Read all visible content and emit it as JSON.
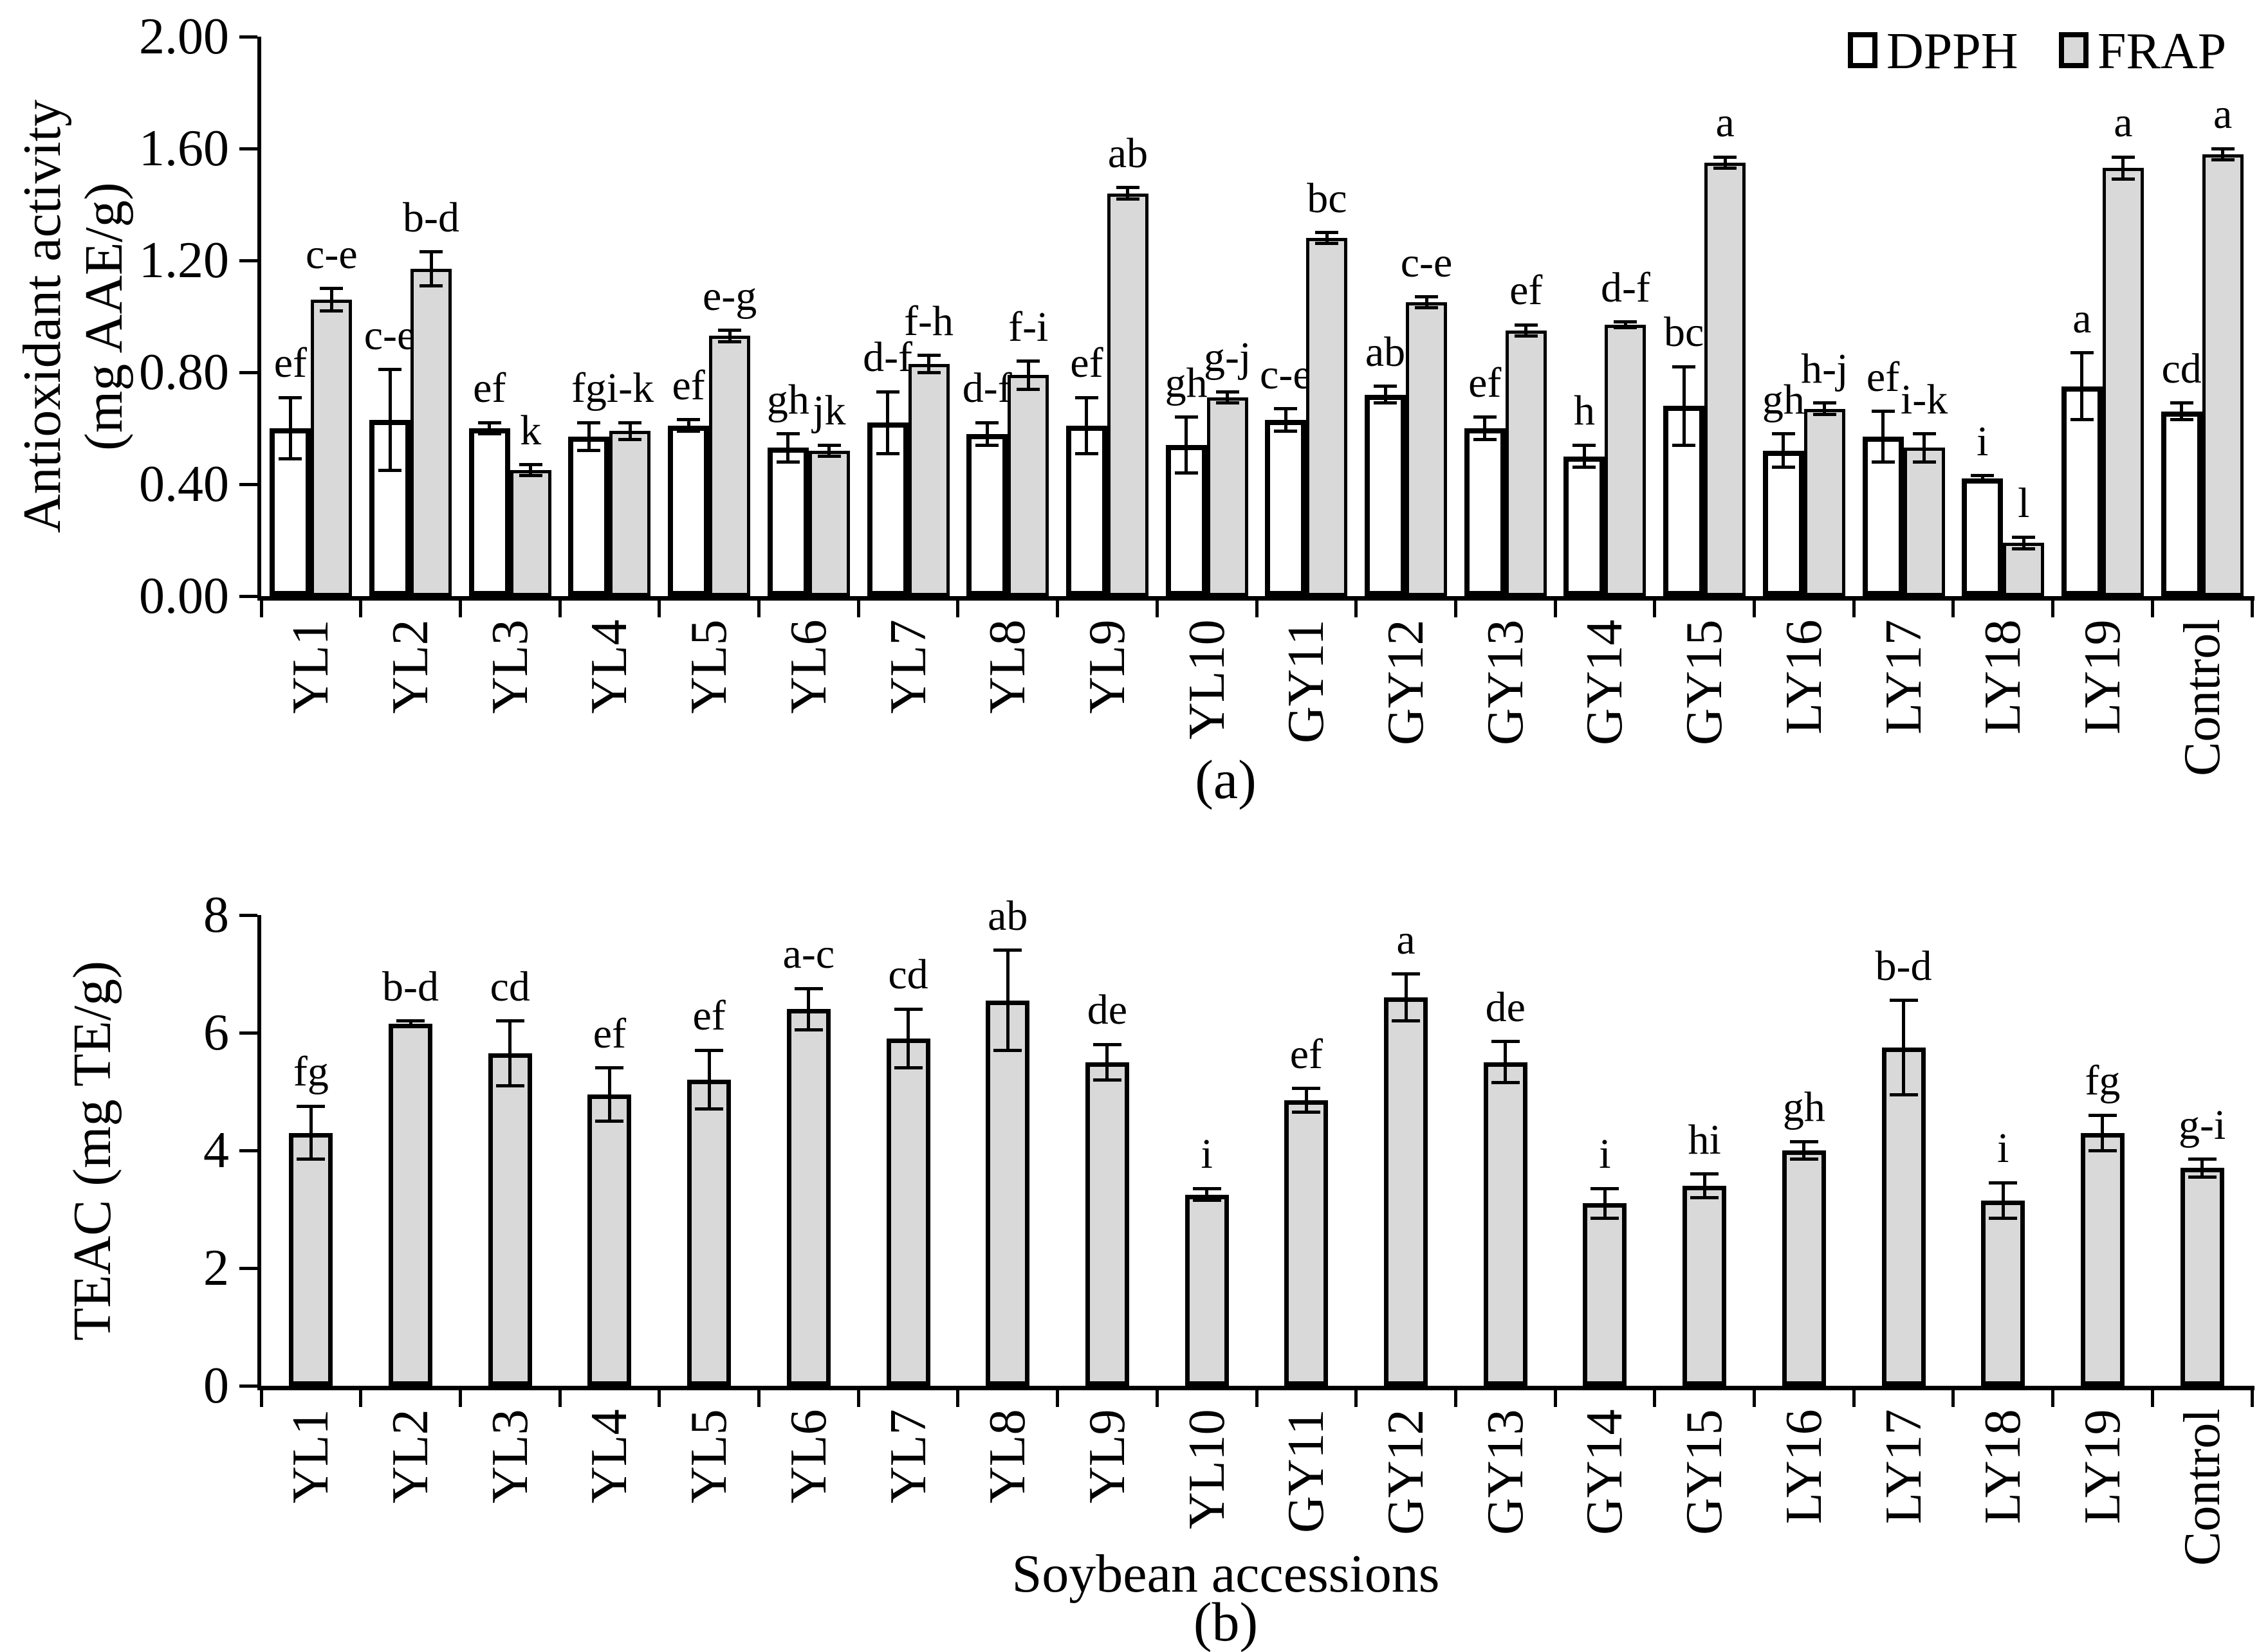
{
  "figure": {
    "background": "#ffffff",
    "bar_fill_gray": "#d9d9d9",
    "bar_fill_white": "#ffffff",
    "legend": {
      "items": [
        {
          "label": "DPPH",
          "fill": "#ffffff"
        },
        {
          "label": "FRAP",
          "fill": "#d9d9d9"
        }
      ]
    },
    "panel_a": {
      "caption": "(a)",
      "y_axis_title_line1": "Antioxidant activity",
      "y_axis_title_line2": "(mg AAE/g)",
      "y_ticks": [
        "0.00",
        "0.40",
        "0.80",
        "1.20",
        "1.60",
        "2.00"
      ]
    },
    "panel_b": {
      "caption": "(b)",
      "y_axis_title": "TEAC (mg TE/g)",
      "x_axis_title": "Soybean accessions",
      "y_ticks": [
        "0",
        "2",
        "4",
        "6",
        "8"
      ]
    }
  },
  "chart_data": [
    {
      "id": "panel_a",
      "type": "bar",
      "title": "(a)",
      "ylabel": "Antioxidant activity (mg AAE/g)",
      "xlabel": "",
      "ylim": [
        0,
        2.0
      ],
      "ytick_step": 0.4,
      "ytick_labels": [
        "0.00",
        "0.40",
        "0.80",
        "1.20",
        "1.60",
        "2.00"
      ],
      "grid": false,
      "legend_position": "top-right",
      "error_bars": true,
      "categories": [
        "YL1",
        "YL2",
        "YL3",
        "YL4",
        "YL5",
        "YL6",
        "YL7",
        "YL8",
        "YL9",
        "YL10",
        "GY11",
        "GY12",
        "GY13",
        "GY14",
        "GY15",
        "LY16",
        "LY17",
        "LY18",
        "LY19",
        "Control"
      ],
      "series": [
        {
          "name": "DPPH",
          "fill": "#ffffff",
          "values": [
            0.6,
            0.63,
            0.6,
            0.57,
            0.61,
            0.53,
            0.62,
            0.58,
            0.61,
            0.54,
            0.63,
            0.72,
            0.6,
            0.5,
            0.68,
            0.52,
            0.57,
            0.42,
            0.75,
            0.66
          ],
          "errors": [
            0.11,
            0.18,
            0.02,
            0.05,
            0.02,
            0.05,
            0.11,
            0.04,
            0.1,
            0.1,
            0.04,
            0.03,
            0.04,
            0.04,
            0.14,
            0.06,
            0.09,
            0.01,
            0.12,
            0.03
          ],
          "letters": [
            "ef",
            "c-e",
            "ef",
            "fg",
            "ef",
            "gh",
            "d-f",
            "d-f",
            "ef",
            "gh",
            "c-e",
            "ab",
            "ef",
            "h",
            "bc",
            "gh",
            "ef",
            "i",
            "a",
            "cd"
          ]
        },
        {
          "name": "FRAP",
          "fill": "#d9d9d9",
          "values": [
            1.06,
            1.17,
            0.45,
            0.59,
            0.93,
            0.52,
            0.83,
            0.79,
            1.44,
            0.71,
            1.28,
            1.05,
            0.95,
            0.97,
            1.55,
            0.67,
            0.53,
            0.19,
            1.53,
            1.58
          ],
          "errors": [
            0.04,
            0.06,
            0.02,
            0.03,
            0.02,
            0.02,
            0.03,
            0.05,
            0.02,
            0.02,
            0.02,
            0.02,
            0.02,
            0.01,
            0.02,
            0.02,
            0.05,
            0.02,
            0.04,
            0.02
          ],
          "letters": [
            "c-e",
            "b-d",
            "k",
            "i-k",
            "e-g",
            "jk",
            "f-h",
            "f-i",
            "ab",
            "g-j",
            "bc",
            "c-e",
            "ef",
            "d-f",
            "a",
            "h-j",
            "i-k",
            "l",
            "a",
            "a"
          ]
        }
      ]
    },
    {
      "id": "panel_b",
      "type": "bar",
      "title": "(b)",
      "ylabel": "TEAC (mg TE/g)",
      "xlabel": "Soybean accessions",
      "ylim": [
        0,
        8
      ],
      "ytick_step": 2,
      "ytick_labels": [
        "0",
        "2",
        "4",
        "6",
        "8"
      ],
      "grid": false,
      "error_bars": true,
      "categories": [
        "YL1",
        "YL2",
        "YL3",
        "YL4",
        "YL5",
        "YL6",
        "YL7",
        "YL8",
        "YL9",
        "YL10",
        "GY11",
        "GY12",
        "GY13",
        "GY14",
        "GY15",
        "LY16",
        "LY17",
        "LY18",
        "LY19",
        "Control"
      ],
      "series": [
        {
          "name": "TEAC",
          "fill": "#d9d9d9",
          "values": [
            4.3,
            6.15,
            5.65,
            4.95,
            5.2,
            6.4,
            5.9,
            6.55,
            5.5,
            3.25,
            4.85,
            6.6,
            5.5,
            3.1,
            3.4,
            4.0,
            5.75,
            3.15,
            4.3,
            3.7
          ],
          "errors": [
            0.45,
            0.05,
            0.55,
            0.45,
            0.5,
            0.35,
            0.5,
            0.85,
            0.3,
            0.1,
            0.2,
            0.4,
            0.35,
            0.25,
            0.2,
            0.15,
            0.8,
            0.3,
            0.3,
            0.15
          ],
          "letters": [
            "fg",
            "b-d",
            "cd",
            "ef",
            "ef",
            "a-c",
            "cd",
            "ab",
            "de",
            "i",
            "ef",
            "a",
            "de",
            "i",
            "hi",
            "gh",
            "b-d",
            "i",
            "fg",
            "g-i"
          ]
        }
      ]
    }
  ]
}
